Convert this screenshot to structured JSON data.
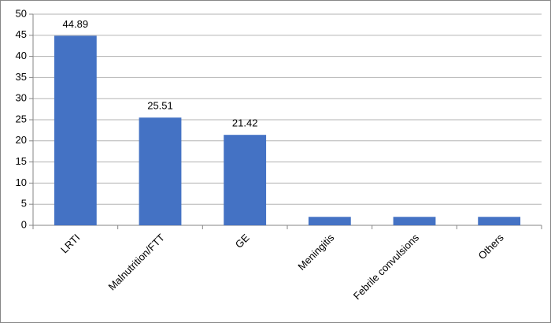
{
  "chart_data": {
    "type": "bar",
    "categories": [
      "LRTI",
      "Malnutrition/FTT",
      "GE",
      "Meningitis",
      "Febrile convulsions",
      "Others"
    ],
    "values": [
      44.89,
      25.51,
      21.42,
      2,
      2,
      2
    ],
    "value_labels": [
      "44.89",
      "25.51",
      "21.42",
      null,
      null,
      null
    ],
    "color": "#4472c4",
    "ylim": [
      0,
      50
    ],
    "yticks": [
      0,
      5,
      10,
      15,
      20,
      25,
      30,
      35,
      40,
      45,
      50
    ],
    "grid": true
  }
}
